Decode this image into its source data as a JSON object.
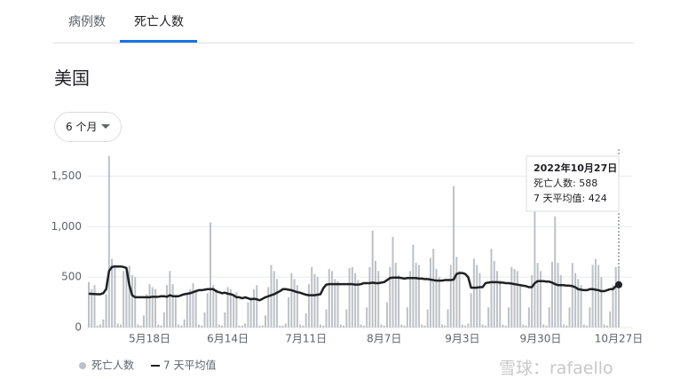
{
  "tabs": [
    "病例数",
    "死亡人数"
  ],
  "region": "美国",
  "range_button": "6 个月",
  "watermark": "雪球：rafaello",
  "tooltip": {
    "title": "2022年10月27日",
    "lines": [
      "死亡人数: 588",
      "7 天平均值: 424"
    ]
  },
  "chart_data": {
    "type": "bar_line",
    "categories": [
      null,
      null,
      null,
      null,
      null,
      null,
      null,
      null,
      null,
      null,
      null,
      null,
      null,
      null,
      null,
      null,
      null,
      null,
      null,
      null,
      null,
      "5月18日",
      null,
      null,
      null,
      null,
      null,
      null,
      null,
      null,
      null,
      null,
      null,
      null,
      null,
      null,
      null,
      null,
      null,
      null,
      null,
      null,
      null,
      null,
      null,
      null,
      null,
      null,
      "6月14日",
      null,
      null,
      null,
      null,
      null,
      null,
      null,
      null,
      null,
      null,
      null,
      null,
      null,
      null,
      null,
      null,
      null,
      null,
      null,
      null,
      null,
      null,
      null,
      null,
      null,
      null,
      "7月11日",
      null,
      null,
      null,
      null,
      null,
      null,
      null,
      null,
      null,
      null,
      null,
      null,
      null,
      null,
      null,
      null,
      null,
      null,
      null,
      null,
      null,
      null,
      null,
      null,
      null,
      null,
      "8月7日",
      null,
      null,
      null,
      null,
      null,
      null,
      null,
      null,
      null,
      null,
      null,
      null,
      null,
      null,
      null,
      null,
      null,
      null,
      null,
      null,
      null,
      null,
      null,
      null,
      null,
      null,
      "9月3日",
      null,
      null,
      null,
      null,
      null,
      null,
      null,
      null,
      null,
      null,
      null,
      null,
      null,
      null,
      null,
      null,
      null,
      null,
      null,
      null,
      null,
      null,
      null,
      null,
      null,
      null,
      "9月30日",
      null,
      null,
      null,
      null,
      null,
      null,
      null,
      null,
      null,
      null,
      null,
      null,
      null,
      null,
      null,
      null,
      null,
      null,
      null,
      null,
      null,
      null,
      null,
      null,
      null,
      null,
      "10月27日"
    ],
    "series": [
      {
        "name": "死亡人数",
        "kind": "bar",
        "color": "#bdc1c6",
        "values": [
          450,
          380,
          420,
          20,
          30,
          80,
          330,
          1700,
          680,
          620,
          40,
          30,
          560,
          600,
          610,
          520,
          500,
          30,
          20,
          120,
          330,
          430,
          400,
          380,
          30,
          20,
          150,
          420,
          560,
          430,
          300,
          30,
          20,
          80,
          340,
          380,
          440,
          380,
          30,
          20,
          150,
          340,
          1040,
          420,
          380,
          30,
          20,
          150,
          400,
          380,
          330,
          350,
          20,
          20,
          40,
          250,
          300,
          380,
          420,
          20,
          20,
          120,
          400,
          620,
          560,
          480,
          20,
          20,
          40,
          300,
          540,
          480,
          420,
          30,
          20,
          140,
          430,
          600,
          530,
          500,
          30,
          20,
          180,
          580,
          560,
          480,
          460,
          30,
          20,
          180,
          590,
          600,
          540,
          470,
          30,
          20,
          200,
          600,
          960,
          660,
          560,
          30,
          20,
          250,
          600,
          900,
          640,
          520,
          30,
          20,
          200,
          560,
          820,
          640,
          620,
          30,
          20,
          180,
          690,
          780,
          580,
          500,
          30,
          20,
          180,
          620,
          1400,
          700,
          560,
          30,
          20,
          40,
          340,
          680,
          620,
          540,
          30,
          20,
          200,
          780,
          660,
          560,
          470,
          30,
          20,
          200,
          600,
          580,
          560,
          430,
          30,
          20,
          200,
          520,
          1300,
          640,
          560,
          30,
          20,
          200,
          650,
          1100,
          640,
          520,
          30,
          20,
          200,
          640,
          540,
          480,
          420,
          30,
          20,
          200,
          620,
          680,
          620,
          500,
          30,
          20,
          160,
          420,
          600,
          588
        ]
      },
      {
        "name": "7 天平均值",
        "kind": "line",
        "color": "#202124",
        "values": [
          335,
          333,
          332,
          330,
          330,
          340,
          380,
          560,
          600,
          605,
          605,
          605,
          600,
          590,
          420,
          320,
          300,
          300,
          300,
          300,
          300,
          300,
          305,
          305,
          305,
          310,
          310,
          305,
          320,
          310,
          310,
          310,
          320,
          330,
          335,
          340,
          350,
          360,
          370,
          370,
          375,
          380,
          380,
          380,
          360,
          350,
          340,
          345,
          335,
          330,
          320,
          300,
          300,
          290,
          300,
          290,
          280,
          285,
          280,
          270,
          285,
          300,
          310,
          320,
          330,
          345,
          360,
          380,
          380,
          375,
          370,
          360,
          350,
          345,
          335,
          325,
          320,
          320,
          320,
          325,
          330,
          390,
          425,
          430,
          430,
          430,
          430,
          430,
          430,
          430,
          430,
          430,
          425,
          425,
          430,
          440,
          440,
          440,
          445,
          440,
          440,
          445,
          450,
          470,
          490,
          495,
          495,
          495,
          490,
          485,
          490,
          490,
          490,
          490,
          485,
          485,
          480,
          480,
          475,
          470,
          465,
          465,
          465,
          470,
          470,
          470,
          475,
          530,
          540,
          540,
          530,
          500,
          395,
          395,
          395,
          400,
          400,
          440,
          445,
          450,
          450,
          450,
          445,
          445,
          440,
          440,
          435,
          430,
          425,
          420,
          415,
          410,
          400,
          400,
          440,
          460,
          460,
          460,
          455,
          455,
          445,
          430,
          420,
          420,
          420,
          415,
          415,
          410,
          400,
          380,
          375,
          370,
          370,
          380,
          380,
          375,
          370,
          360,
          360,
          370,
          380,
          380,
          410,
          424
        ]
      }
    ],
    "ylim": [
      0,
      1750
    ],
    "yticks": [
      0,
      500,
      {
        "value": 1000,
        "label": "1,000"
      },
      {
        "value": 1500,
        "label": "1,500"
      }
    ],
    "grid": true
  }
}
